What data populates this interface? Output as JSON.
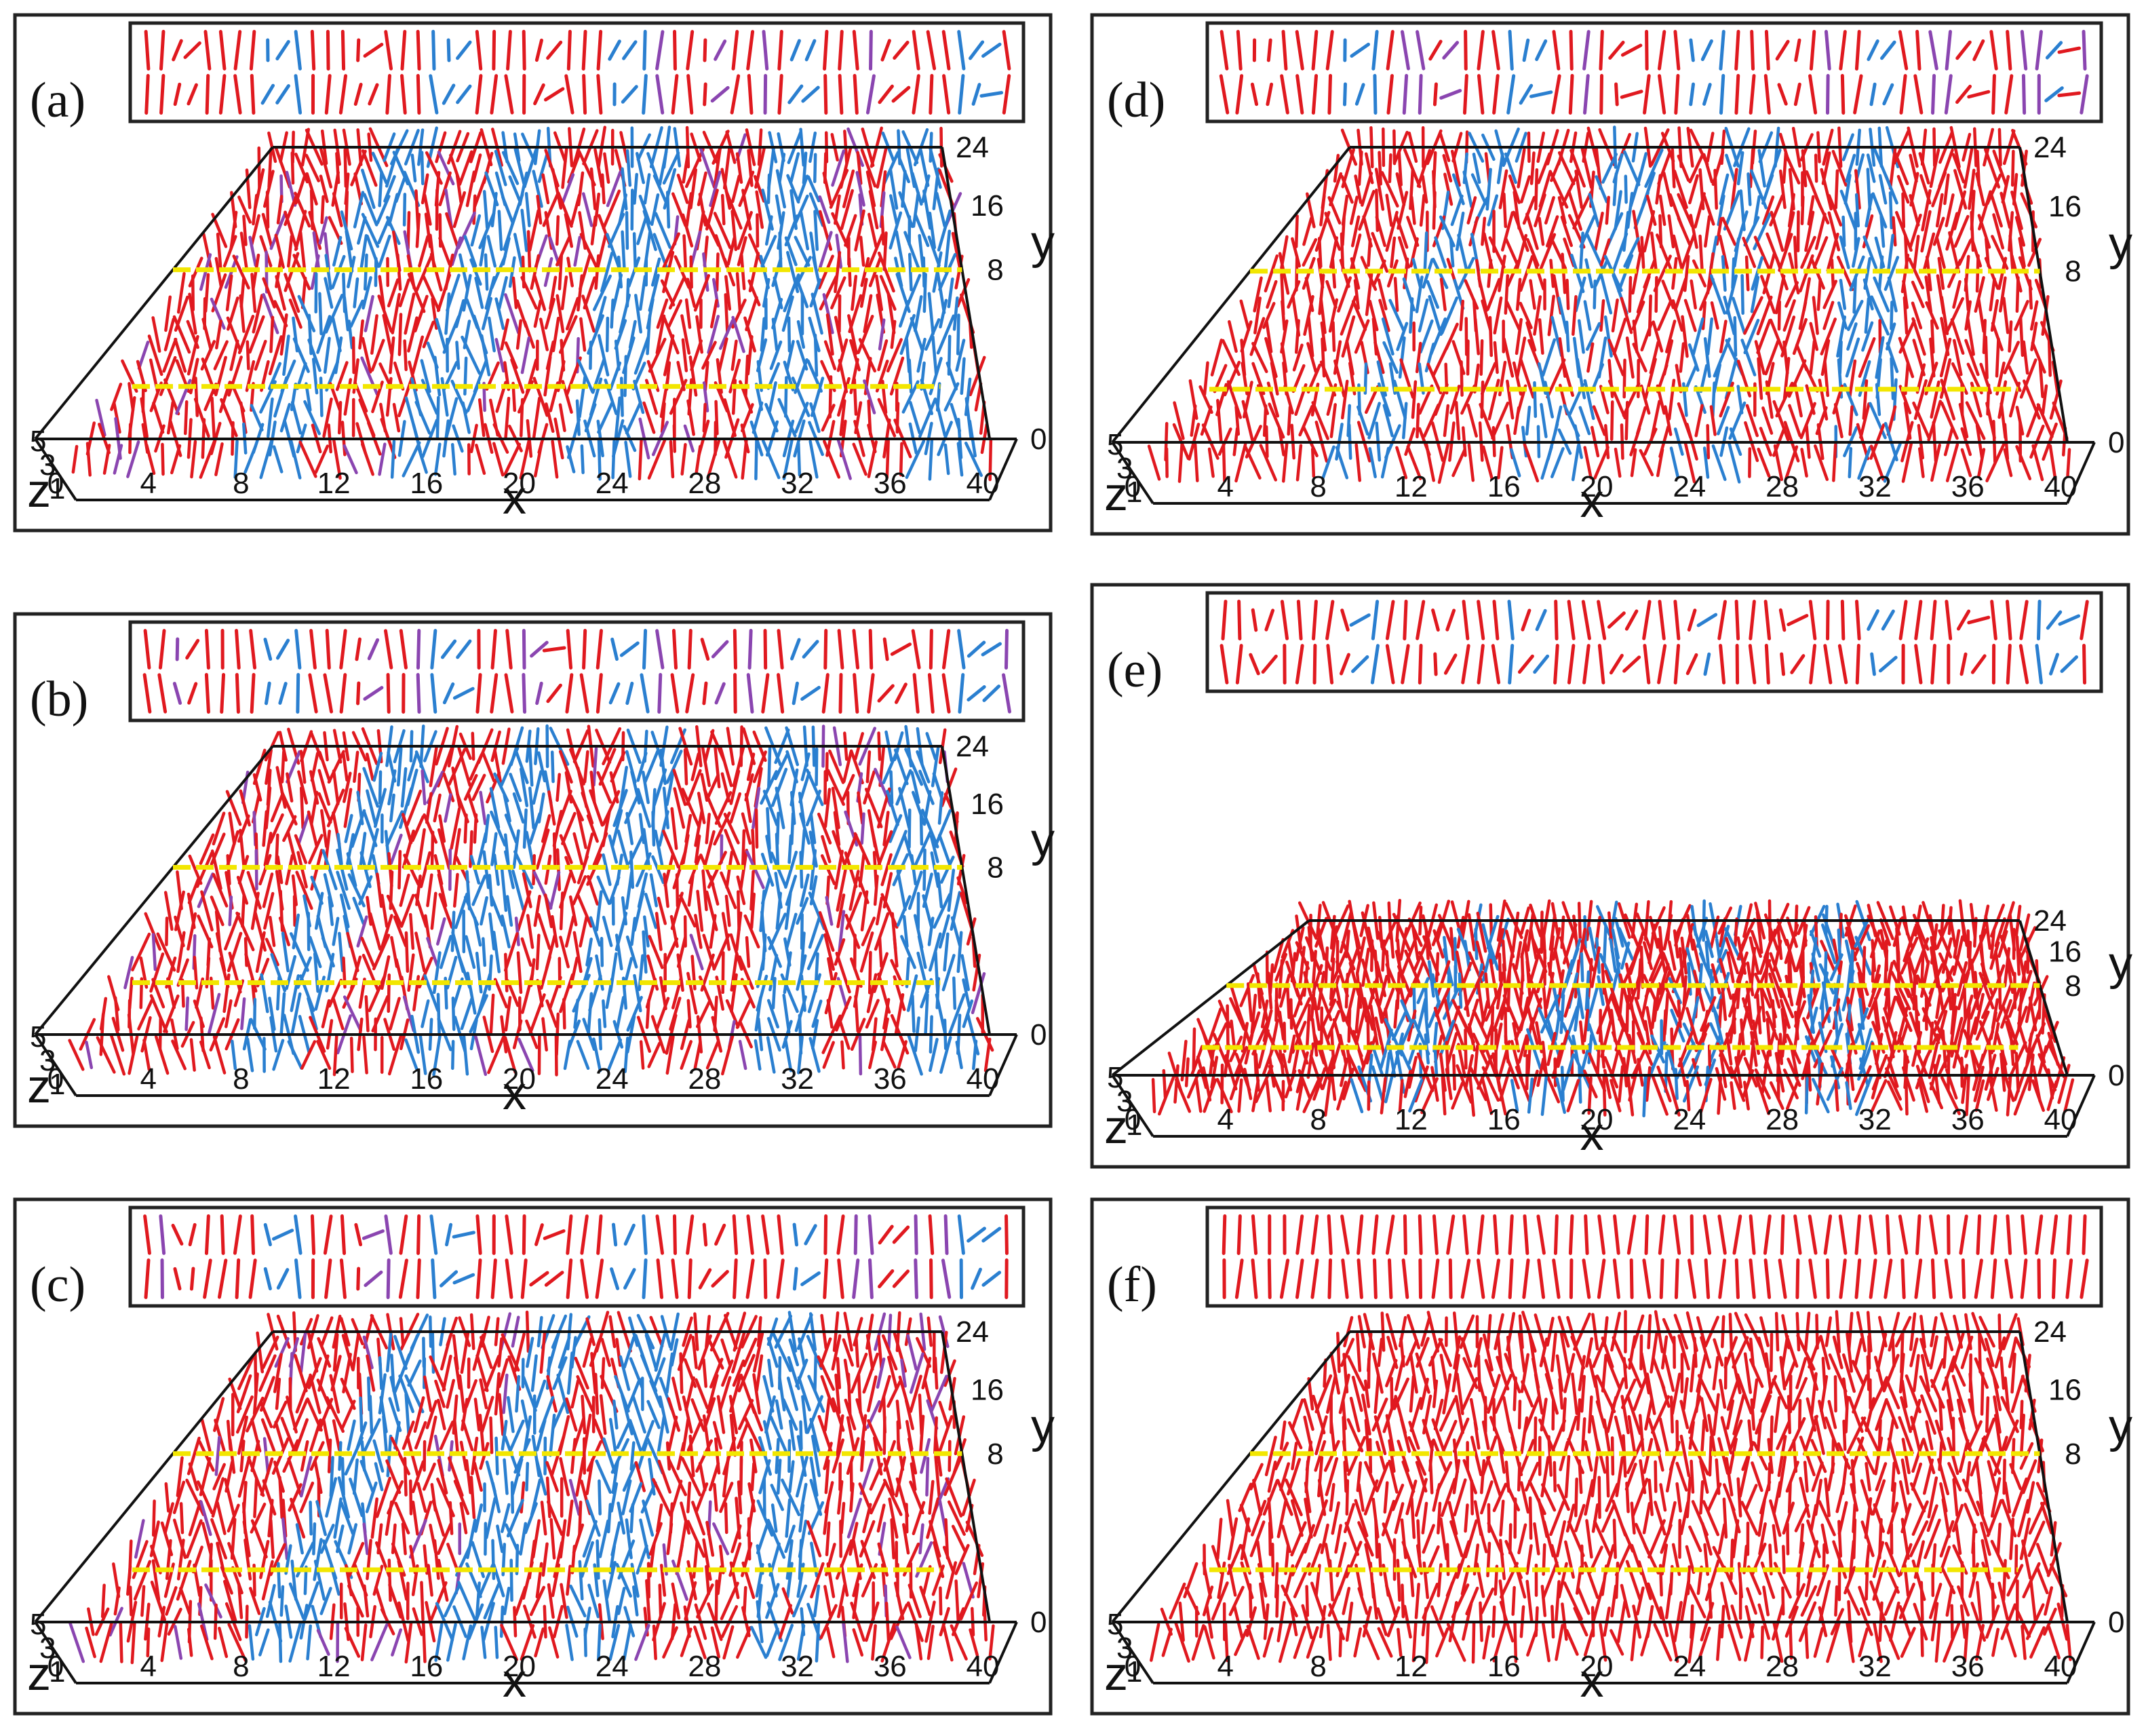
{
  "colors": {
    "red": "#e0191f",
    "blue": "#2a7fd0",
    "purple": "#8a45b0",
    "yellow": "#f2e600",
    "frame": "#222222"
  },
  "axes": {
    "x_title": "x",
    "y_title": "y",
    "z_title": "z",
    "x_ticks": [
      "0",
      "4",
      "8",
      "12",
      "16",
      "20",
      "24",
      "28",
      "32",
      "36",
      "40"
    ],
    "y_ticks": [
      "0",
      "8",
      "16",
      "24"
    ],
    "z_ticks": [
      "5",
      "3",
      "1"
    ]
  },
  "panels": [
    {
      "label": "(a)",
      "blue_fraction": 0.5,
      "blue_stripes": [
        8,
        15,
        23,
        31,
        38
      ]
    },
    {
      "label": "(b)",
      "blue_fraction": 0.45,
      "blue_stripes": [
        8,
        16,
        23,
        31,
        38
      ]
    },
    {
      "label": "(c)",
      "blue_fraction": 0.4,
      "blue_stripes": [
        9,
        17,
        23,
        31
      ]
    },
    {
      "label": "(d)",
      "blue_fraction": 0.2,
      "blue_stripes": [
        9,
        17,
        24,
        31
      ]
    },
    {
      "label": "(e)",
      "blue_fraction": 0.08,
      "blue_stripes": [
        10,
        17,
        23,
        30
      ]
    },
    {
      "label": "(f)",
      "blue_fraction": 0.0,
      "blue_stripes": []
    }
  ]
}
